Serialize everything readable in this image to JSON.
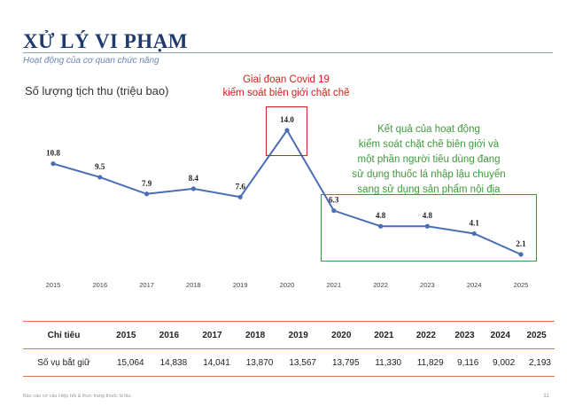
{
  "header": {
    "title": "XỬ LÝ VI PHẠM",
    "subtitle": "Hoạt động của cơ quan chức năng"
  },
  "chart_label": "Số lượng tịch thu (triệu bao)",
  "annotations": {
    "covid_line1": "Giai đoạn Covid 19",
    "covid_line2": "kiểm soát biên giới chặt chẽ",
    "result_line1": "Kết quả của hoạt động",
    "result_line2": "kiểm soát chặt chẽ biên giới và",
    "result_line3": "một phần người tiêu dùng đang",
    "result_line4": "sử dụng thuốc lá nhập lậu chuyển",
    "result_line5": "sang sử dụng sản phẩm nội địa"
  },
  "chart_data": {
    "type": "line",
    "title": "",
    "ylabel": "Số lượng tịch thu (triệu bao)",
    "x": [
      "2015",
      "2016",
      "2017",
      "2018",
      "2019",
      "2020",
      "2021",
      "2022",
      "2023",
      "2024",
      "2025"
    ],
    "values": [
      10.8,
      9.5,
      7.9,
      8.4,
      7.6,
      14.0,
      6.3,
      4.8,
      4.8,
      4.1,
      2.1
    ],
    "data_labels": [
      "10.8",
      "9.5",
      "7.9",
      "8.4",
      "7.6",
      "14.0",
      "6.3",
      "4.8",
      "4.8",
      "4.1",
      "2.1"
    ],
    "grid": false,
    "line_color": "#4a6eb5"
  },
  "table": {
    "header_label": "Chỉ tiêu",
    "years": [
      "2015",
      "2016",
      "2017",
      "2018",
      "2019",
      "2020",
      "2021",
      "2022",
      "2023",
      "2024",
      "2025"
    ],
    "row_label": "Số vụ bắt giữ",
    "row_values": [
      "15,064",
      "14,838",
      "14,041",
      "13,870",
      "13,567",
      "13,795",
      "11,330",
      "11,829",
      "9,116",
      "9,002",
      "2,193"
    ]
  },
  "footer": {
    "text": "Báo cáo cơ cấu Hiệp hội & thực trạng thuốc lá lậu",
    "page": "11"
  },
  "colors": {
    "title": "#1f3a6e",
    "red": "#d0211c",
    "green": "#3f9a3a",
    "table_rule": "#e0754a"
  }
}
